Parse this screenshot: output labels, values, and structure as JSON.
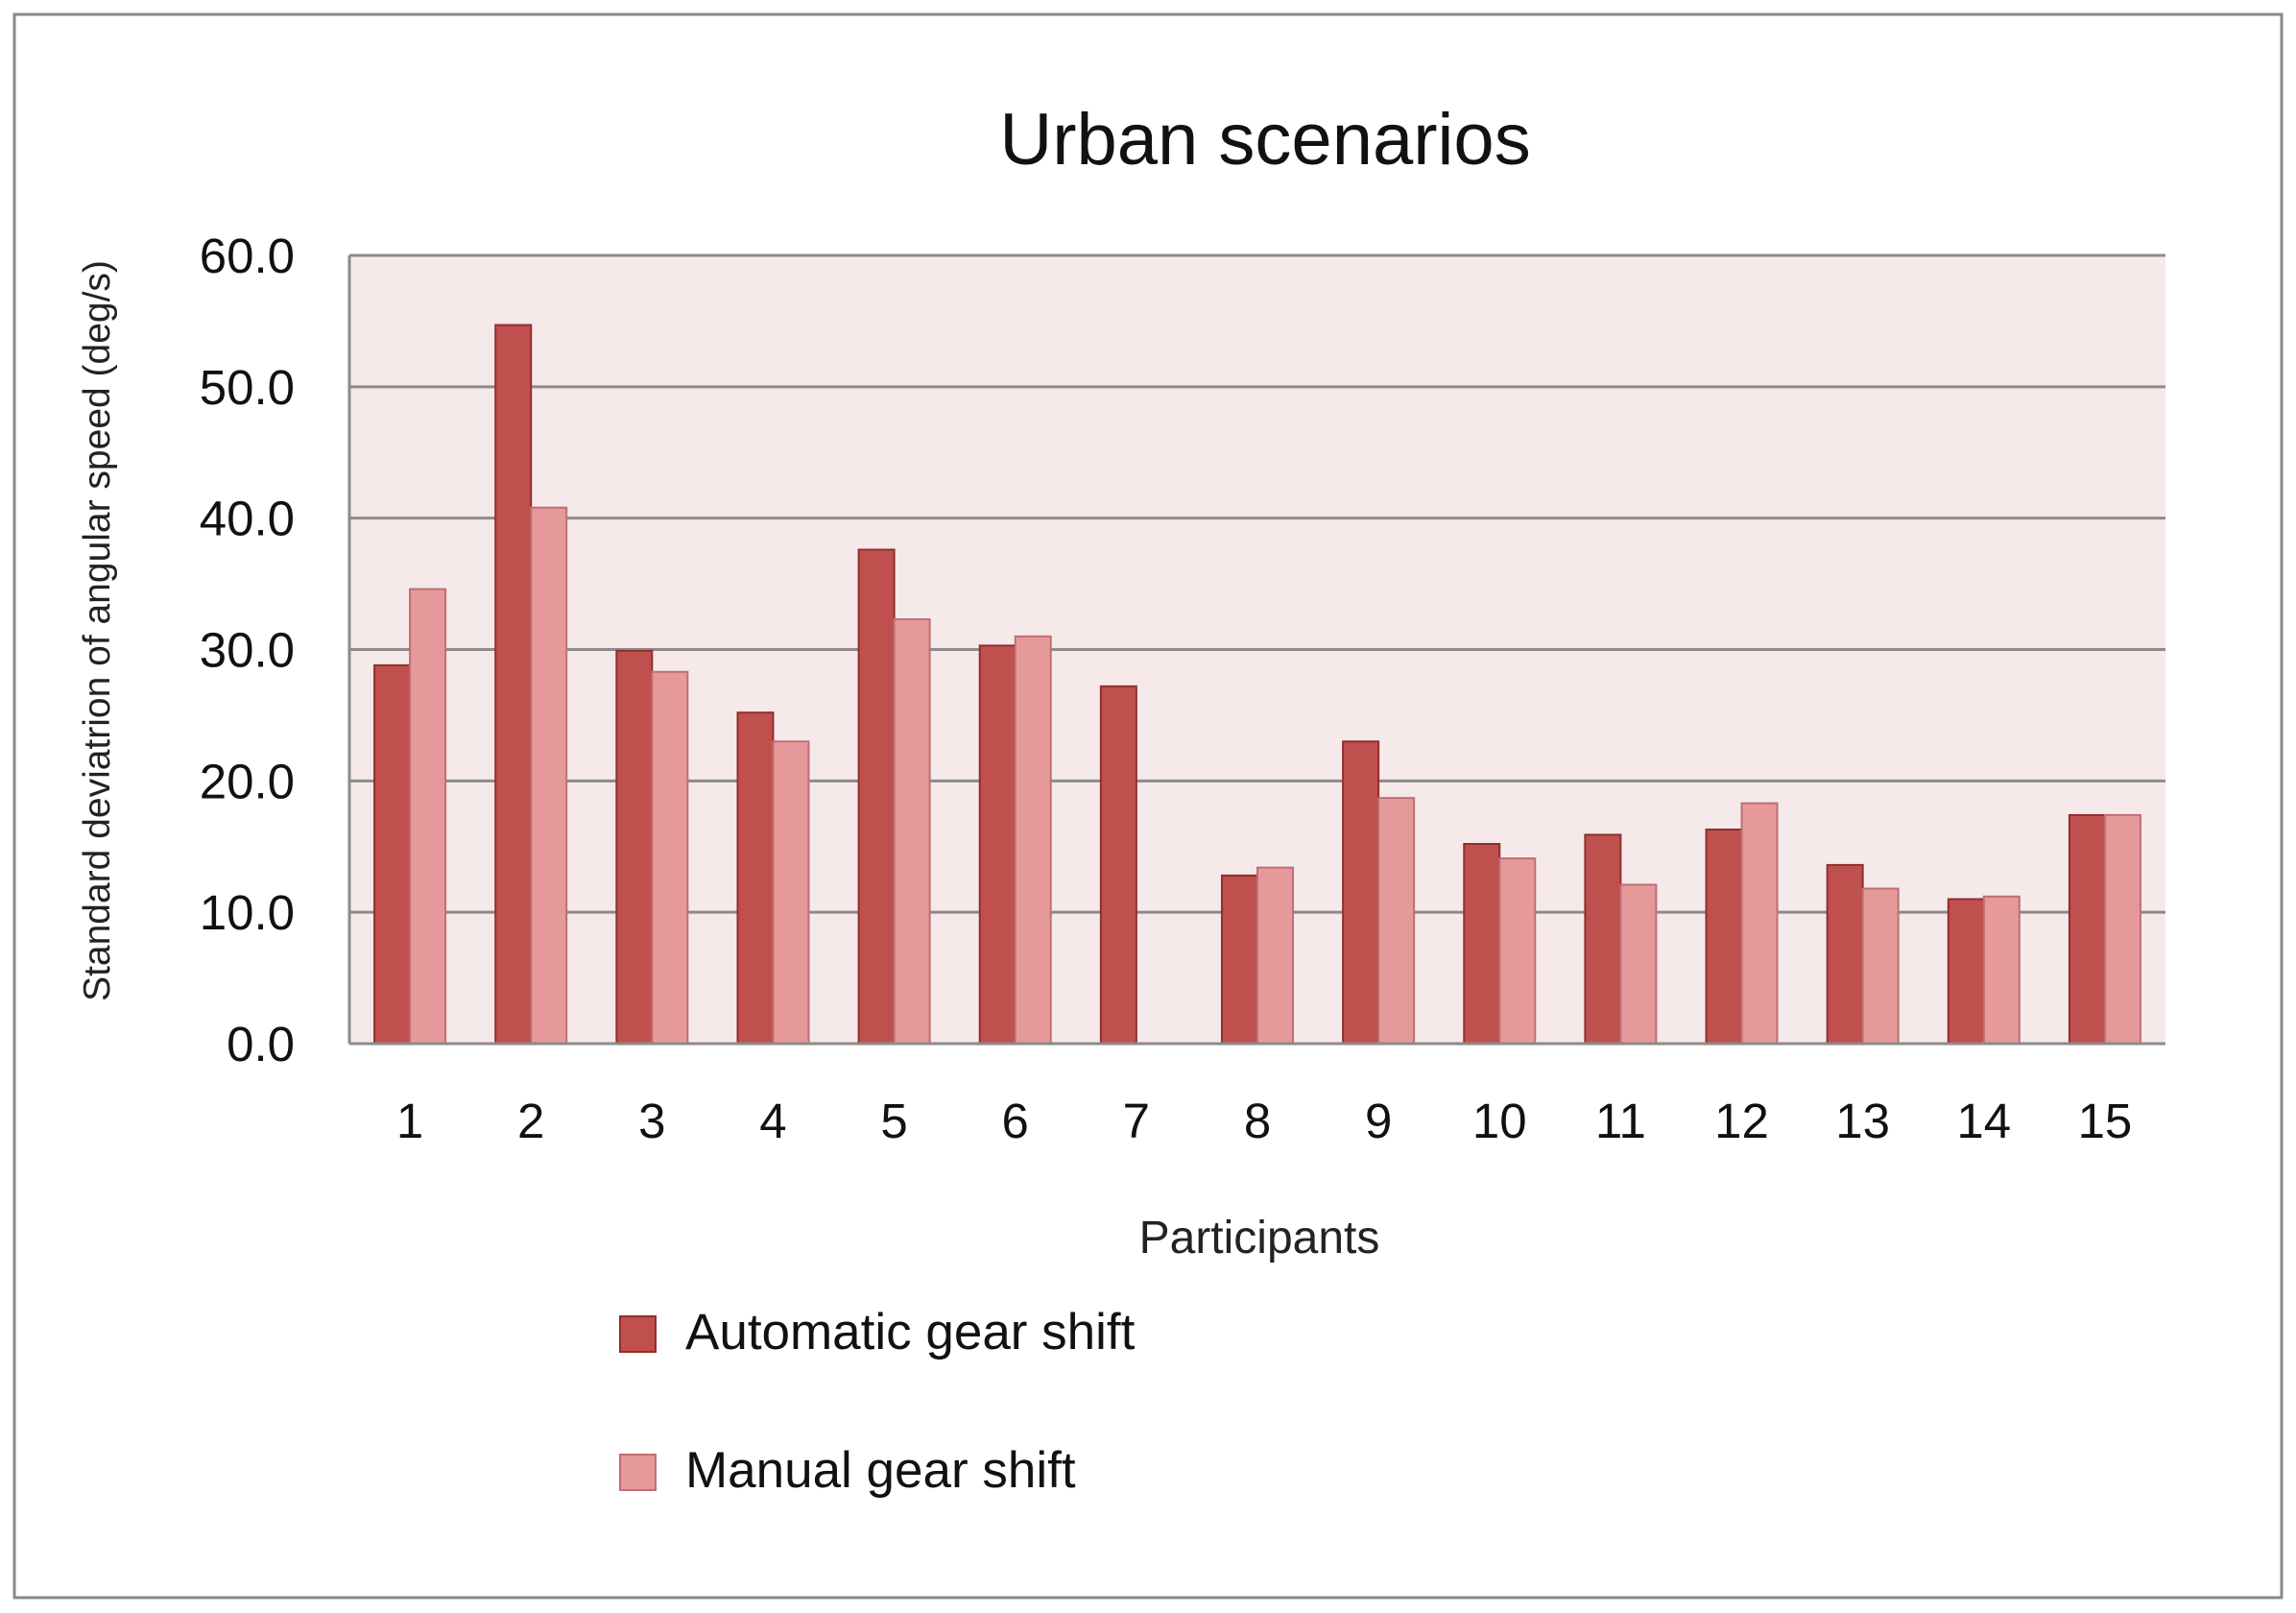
{
  "chart_data": {
    "type": "bar",
    "title": "Urban scenarios",
    "xlabel": "Participants",
    "ylabel": "Standard deviatrion of angular speed (deg/s)",
    "categories": [
      "1",
      "2",
      "3",
      "4",
      "5",
      "6",
      "7",
      "8",
      "9",
      "10",
      "11",
      "12",
      "13",
      "14",
      "15"
    ],
    "series": [
      {
        "name": "Automatic gear shift",
        "color": "#c0504d",
        "values": [
          28.8,
          54.7,
          29.9,
          25.2,
          37.6,
          30.3,
          27.2,
          12.8,
          23.0,
          15.2,
          15.9,
          16.3,
          13.6,
          11.0,
          17.4
        ]
      },
      {
        "name": "Manual gear shift",
        "color": "#e6999b",
        "values": [
          34.6,
          40.8,
          28.3,
          23.0,
          32.3,
          31.0,
          0,
          13.4,
          18.7,
          14.1,
          12.1,
          18.3,
          11.8,
          11.2,
          17.4
        ]
      }
    ],
    "ylim": [
      0,
      60
    ],
    "yticks": [
      "0.0",
      "10.0",
      "20.0",
      "30.0",
      "40.0",
      "50.0",
      "60.0"
    ],
    "grid": true,
    "legend_position": "bottom",
    "plot_background": "#f6e9ea"
  }
}
